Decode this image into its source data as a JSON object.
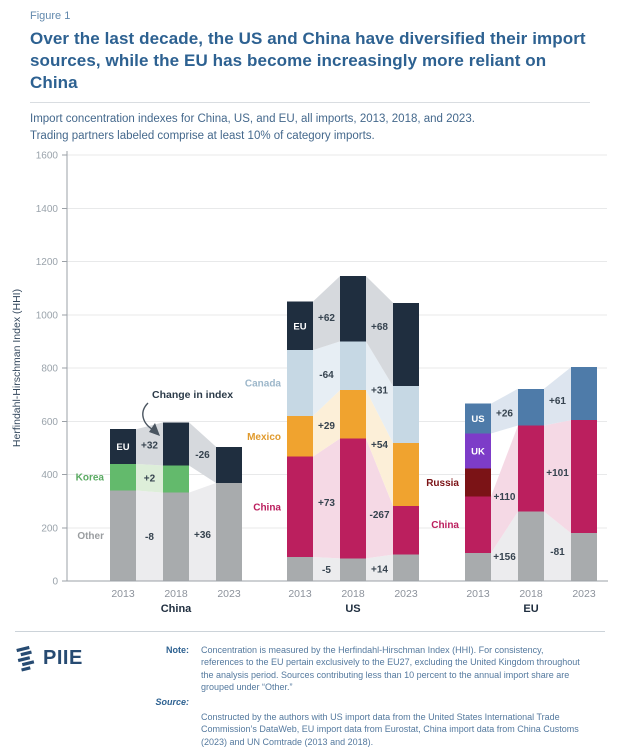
{
  "figure_label": "Figure 1",
  "title": "Over the last decade, the US and China have diversified their import sources, while the EU has become increasingly more reliant on China",
  "subtitle": "Import concentration indexes for China, US, and EU, all imports, 2013, 2018, and 2023.\nTrading partners labeled comprise at least 10% of category imports.",
  "chart_data": {
    "type": "bar",
    "subtype": "stacked-bars-with-flow-bands",
    "ylabel": "Herfindahl-Hirschman Index (HHI)",
    "ylim": [
      0,
      1600
    ],
    "yticks": [
      0,
      200,
      400,
      600,
      800,
      1000,
      1200,
      1400,
      1600
    ],
    "grid": true,
    "annotation": "Change in index",
    "series_colors": {
      "Other": "#a8abad",
      "Korea": "#63ba6c",
      "EU": "#1f2e3f",
      "China": "#bb1f5e",
      "Mexico": "#f0a32f",
      "Canada": "#c6d8e4",
      "Russia": "#7b1316",
      "UK": "#7d3cc8",
      "US": "#4e7ba9"
    },
    "connector_colors": {
      "Other": "#ececee",
      "Korea": "#ddeed9",
      "EU": "#d6d9dd",
      "China": "#f5d9e5",
      "Mexico": "#fcefd8",
      "Canada": "#e7eef4",
      "US": "#dde5ef"
    },
    "side_label_colors": {
      "Other": "#9a9da0",
      "Korea": "#5aaa62",
      "Canada": "#9db7ca",
      "Mexico": "#e09a2d",
      "China": "#bb1f5e",
      "Russia": "#7b1316"
    },
    "groups": [
      {
        "label": "China",
        "x": 110,
        "bars": [
          {
            "year": "2013",
            "segments": [
              [
                "Other",
                340
              ],
              [
                "Korea",
                100
              ],
              [
                "EU",
                130
              ]
            ]
          },
          {
            "year": "2018",
            "segments": [
              [
                "Other",
                332
              ],
              [
                "Korea",
                102
              ],
              [
                "EU",
                162
              ]
            ]
          },
          {
            "year": "2023",
            "segments": [
              [
                "Other",
                368
              ],
              [
                "EU",
                136
              ]
            ]
          }
        ],
        "changes": [
          [
            [
              "Other",
              "-8"
            ],
            [
              "Korea",
              "+2"
            ],
            [
              "EU",
              "+32"
            ]
          ],
          [
            [
              "Other",
              "+36"
            ],
            [
              "EU",
              "-26"
            ]
          ]
        ],
        "side_labels": [
          {
            "series": "Korea",
            "text": "Korea"
          },
          {
            "series": "Other",
            "text": "Other"
          }
        ],
        "bar_labels": [
          {
            "bar": 0,
            "series": "EU",
            "text": "EU"
          }
        ]
      },
      {
        "label": "US",
        "x": 287,
        "bars": [
          {
            "year": "2013",
            "segments": [
              [
                "Other",
                90
              ],
              [
                "China",
                377
              ],
              [
                "Mexico",
                153
              ],
              [
                "Canada",
                247
              ],
              [
                "EU",
                183
              ]
            ]
          },
          {
            "year": "2018",
            "segments": [
              [
                "Other",
                85
              ],
              [
                "China",
                450
              ],
              [
                "Mexico",
                182
              ],
              [
                "Canada",
                183
              ],
              [
                "EU",
                245
              ]
            ]
          },
          {
            "year": "2023",
            "segments": [
              [
                "Other",
                99
              ],
              [
                "China",
                183
              ],
              [
                "Mexico",
                236
              ],
              [
                "Canada",
                214
              ],
              [
                "EU",
                313
              ]
            ]
          }
        ],
        "changes": [
          [
            [
              "Other",
              "-5"
            ],
            [
              "China",
              "+73"
            ],
            [
              "Mexico",
              "+29"
            ],
            [
              "Canada",
              "-64"
            ],
            [
              "EU",
              "+62"
            ]
          ],
          [
            [
              "Other",
              "+14"
            ],
            [
              "China",
              "-267"
            ],
            [
              "Mexico",
              "+54"
            ],
            [
              "Canada",
              "+31"
            ],
            [
              "EU",
              "+68"
            ]
          ]
        ],
        "side_labels": [
          {
            "series": "Canada",
            "text": "Canada"
          },
          {
            "series": "Mexico",
            "text": "Mexico"
          },
          {
            "series": "China",
            "text": "China"
          }
        ],
        "bar_labels": [
          {
            "bar": 0,
            "series": "EU",
            "text": "EU"
          }
        ]
      },
      {
        "label": "EU",
        "x": 465,
        "bars": [
          {
            "year": "2013",
            "segments": [
              [
                "Other",
                105
              ],
              [
                "China",
                213
              ],
              [
                "Russia",
                105
              ],
              [
                "UK",
                131
              ],
              [
                "US",
                112
              ]
            ]
          },
          {
            "year": "2018",
            "segments": [
              [
                "Other",
                261
              ],
              [
                "China",
                323
              ],
              [
                "US",
                138
              ]
            ]
          },
          {
            "year": "2023",
            "segments": [
              [
                "Other",
                180
              ],
              [
                "China",
                424
              ],
              [
                "US",
                199
              ]
            ]
          }
        ],
        "changes": [
          [
            [
              "Other",
              "+156"
            ],
            [
              "China",
              "+110"
            ],
            [
              "US",
              "+26"
            ]
          ],
          [
            [
              "Other",
              "-81"
            ],
            [
              "China",
              "+101"
            ],
            [
              "US",
              "+61"
            ]
          ]
        ],
        "side_labels": [
          {
            "series": "Russia",
            "text": "Russia"
          },
          {
            "series": "China",
            "text": "China"
          }
        ],
        "bar_labels": [
          {
            "bar": 0,
            "series": "US",
            "text": "US"
          },
          {
            "bar": 0,
            "series": "UK",
            "text": "UK"
          }
        ]
      }
    ]
  },
  "footer": {
    "logo_text": "PIIE",
    "note_label": "Note:",
    "note_text": "Concentration is measured by the Herfindahl-Hirschman Index (HHI). For consistency, references to the EU pertain exclusively to the EU27, excluding the United Kingdom throughout the analysis period. Sources contributing less than 10 percent to the annual import share are grouped under “Other.”",
    "source_label": "Source:",
    "source_text": "Constructed by the authors with US import data from the United States International Trade Commission’s DataWeb, EU import data from Eurostat, China import data from China Customs (2023) and UN Comtrade (2013 and 2018)."
  }
}
